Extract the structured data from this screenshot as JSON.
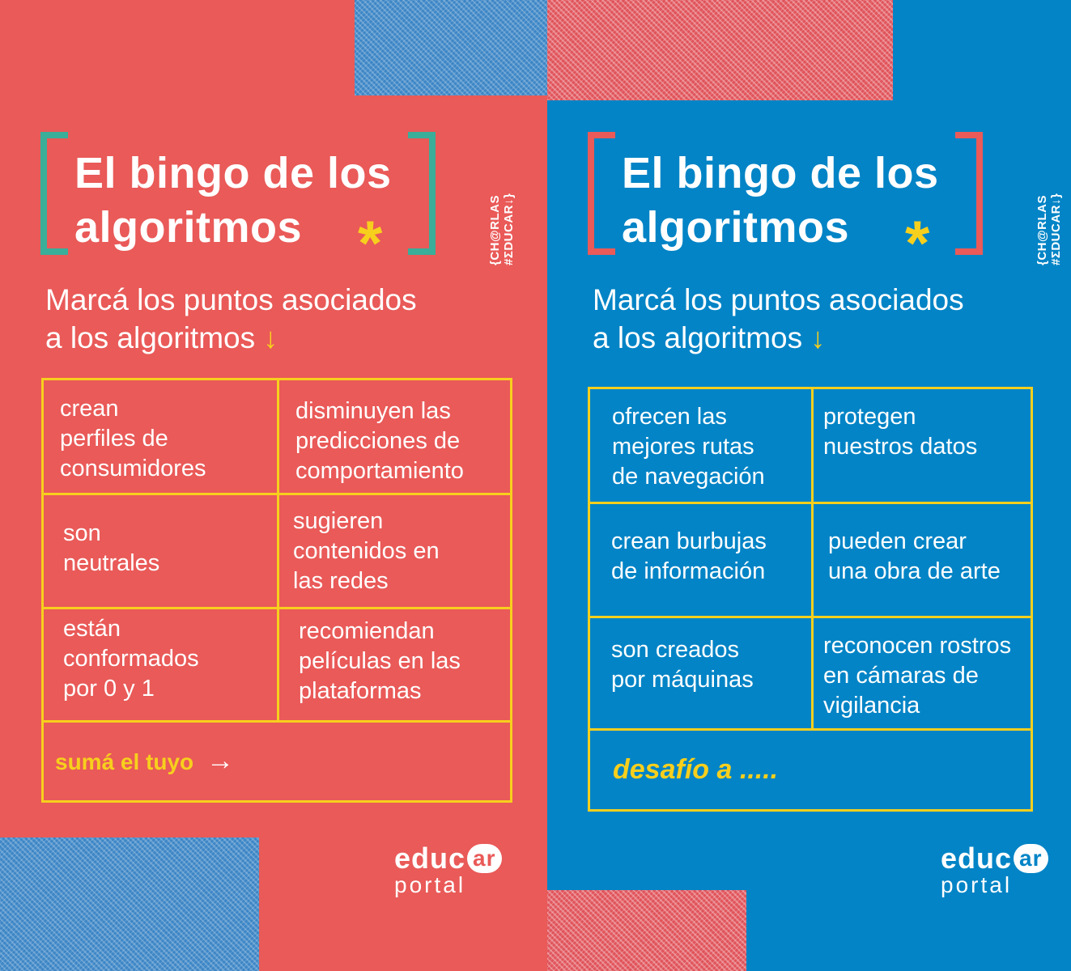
{
  "left": {
    "title_line1": "El bingo de los",
    "title_line2": "algoritmos",
    "star": "*",
    "tag": "{CH@RLAS #ΣDUCAR↓}",
    "subtitle_line1": "Marcá los puntos asociados",
    "subtitle_line2": "a los algoritmos",
    "arrow": "↓",
    "cells": [
      [
        "crean",
        "perfiles de",
        "consumidores"
      ],
      [
        "disminuyen las",
        "predicciones de",
        "comportamiento"
      ],
      [
        "son",
        "neutrales"
      ],
      [
        "sugieren",
        "contenidos en",
        "las redes"
      ],
      [
        "están",
        "conformados",
        "por 0 y 1"
      ],
      [
        "recomiendan",
        "películas en las",
        "plataformas"
      ]
    ],
    "footer": "sumá el tuyo",
    "footer_arrow": "→",
    "logo_main": "educ",
    "logo_ar": "ar",
    "logo_sub": "portal"
  },
  "right": {
    "title_line1": "El bingo de los",
    "title_line2": "algoritmos",
    "star": "*",
    "tag": "{CH@RLAS #ΣDUCAR↓}",
    "subtitle_line1": "Marcá los puntos asociados",
    "subtitle_line2": "a los algoritmos",
    "arrow": "↓",
    "cells": [
      [
        "ofrecen las",
        "mejores rutas",
        "de navegación"
      ],
      [
        "protegen",
        "nuestros datos"
      ],
      [
        "crean burbujas",
        "de información"
      ],
      [
        "pueden crear",
        "una obra de arte"
      ],
      [
        "son creados",
        "por máquinas"
      ],
      [
        "reconocen rostros",
        "en cámaras de",
        "vigilancia"
      ]
    ],
    "footer": "desafío a .....",
    "logo_main": "educ",
    "logo_ar": "ar",
    "logo_sub": "portal"
  },
  "colors": {
    "red_bg": "#e95a58",
    "blue_bg": "#0284c6",
    "yellow": "#f7cf1d",
    "teal_bracket": "#3aae99",
    "red_bracket": "#e95a58"
  }
}
